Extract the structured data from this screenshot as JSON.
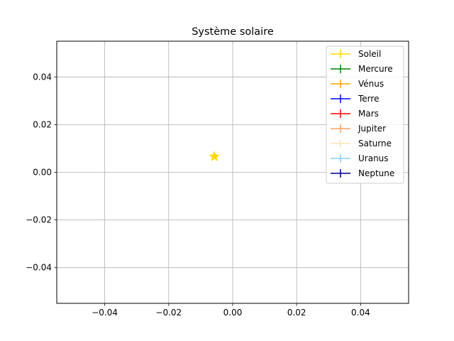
{
  "chart_data": {
    "type": "scatter",
    "title": "Système solaire",
    "xlabel": "",
    "ylabel": "",
    "xlim": [
      -0.055,
      0.055
    ],
    "ylim": [
      -0.055,
      0.055
    ],
    "grid": true,
    "legend_position": "top-right",
    "x_ticks": [
      -0.04,
      -0.02,
      0.0,
      0.02,
      0.04
    ],
    "x_tick_labels": [
      "−0.04",
      "−0.02",
      "0.00",
      "0.02",
      "0.04"
    ],
    "y_ticks": [
      -0.04,
      -0.02,
      0.0,
      0.02,
      0.04
    ],
    "y_tick_labels": [
      "−0.04",
      "−0.02",
      "0.00",
      "0.02",
      "0.04"
    ],
    "series": [
      {
        "name": "Soleil",
        "color": "#FFD700",
        "marker": "star",
        "points": [
          {
            "x": -0.0057,
            "y": 0.0066
          }
        ]
      },
      {
        "name": "Mercure",
        "color": "#008000",
        "marker": "plus",
        "points": []
      },
      {
        "name": "Vénus",
        "color": "#FFA500",
        "marker": "plus",
        "points": []
      },
      {
        "name": "Terre",
        "color": "#0000FF",
        "marker": "plus",
        "points": []
      },
      {
        "name": "Mars",
        "color": "#FF0000",
        "marker": "plus",
        "points": []
      },
      {
        "name": "Jupiter",
        "color": "#FFA060",
        "marker": "plus",
        "points": []
      },
      {
        "name": "Saturne",
        "color": "#FFE4B5",
        "marker": "plus",
        "points": []
      },
      {
        "name": "Uranus",
        "color": "#87CEFA",
        "marker": "plus",
        "points": []
      },
      {
        "name": "Neptune",
        "color": "#00008B",
        "marker": "plus",
        "points": []
      }
    ]
  }
}
